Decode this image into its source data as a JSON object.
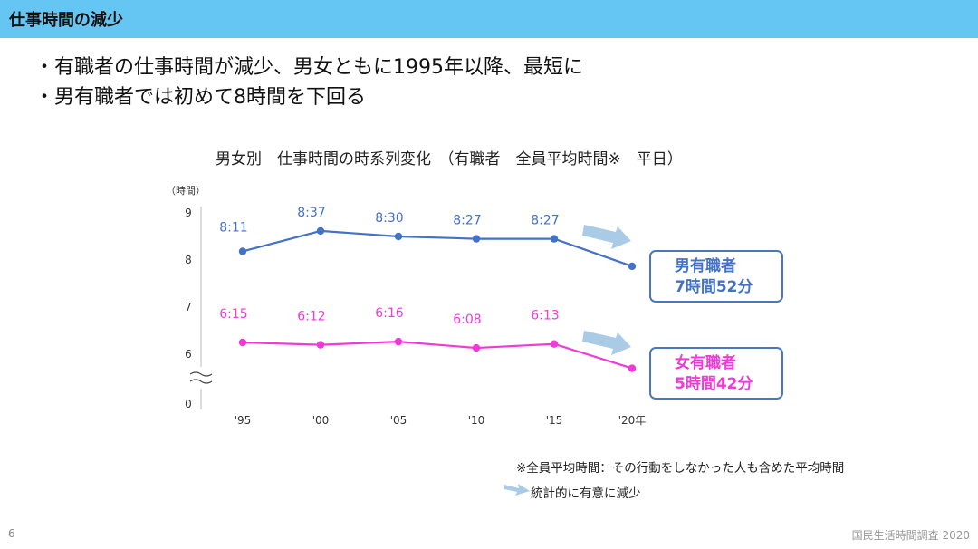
{
  "header": {
    "title": "仕事時間の減少"
  },
  "bullets": [
    "・有職者の仕事時間が減少、男女ともに1995年以降、最短に",
    "・男有職者では初めて8時間を下回る"
  ],
  "chart_data": {
    "type": "line",
    "title": "男女別　仕事時間の時系列変化　（有職者　全員平均時間※　平日）",
    "ylabel": "（時間）",
    "categories": [
      "'95",
      "'00",
      "'05",
      "'10",
      "'15",
      "'20年"
    ],
    "y_ticks": [
      "9",
      "8",
      "7",
      "6",
      "0"
    ],
    "ylim": [
      5.5,
      9
    ],
    "axis_break": true,
    "series": [
      {
        "name": "男有職者",
        "color": "#4472c4",
        "values": [
          8.183,
          8.617,
          8.5,
          8.45,
          8.45,
          7.867
        ],
        "labels": [
          "8:11",
          "8:37",
          "8:30",
          "8:27",
          "8:27",
          ""
        ]
      },
      {
        "name": "女有職者",
        "color": "#f03ad8",
        "values": [
          6.25,
          6.2,
          6.267,
          6.133,
          6.217,
          5.7
        ],
        "labels": [
          "6:15",
          "6:12",
          "6:16",
          "6:08",
          "6:13",
          ""
        ]
      }
    ]
  },
  "callouts": {
    "male": {
      "line1": "男有職者",
      "line2": "7時間52分",
      "color": "#4472c4"
    },
    "female": {
      "line1": "女有職者",
      "line2": "5時間42分",
      "color": "#f03ad8"
    }
  },
  "notes": {
    "definition": "※全員平均時間：その行動をしなかった人も含めた平均時間",
    "legend_arrow": "統計的に有意に減少"
  },
  "page_number": "6",
  "footer": "国民生活時間調査 2020"
}
